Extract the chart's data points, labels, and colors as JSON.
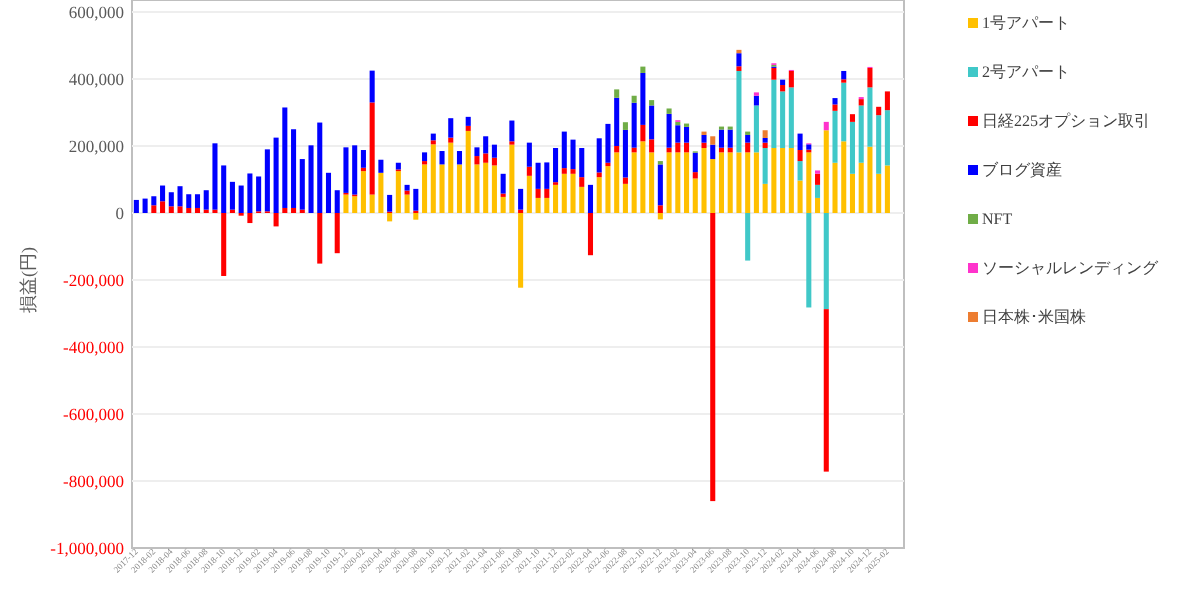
{
  "chart_data": {
    "type": "bar",
    "stacked": true,
    "ylabel": "損益(円)",
    "categories": [
      "2017-12",
      null,
      "2018-02",
      null,
      "2018-04",
      null,
      "2018-06",
      null,
      "2018-08",
      null,
      "2018-10",
      null,
      "2018-12",
      null,
      "2019-02",
      null,
      "2019-04",
      null,
      "2019-06",
      null,
      "2019-08",
      null,
      "2019-10",
      null,
      "2019-12",
      null,
      "2020-02",
      null,
      "2020-04",
      null,
      "2020-06",
      null,
      "2020-08",
      null,
      "2020-10",
      null,
      "2020-12",
      null,
      "2021-02",
      null,
      "2021-04",
      null,
      "2021-06",
      null,
      "2021-08",
      null,
      "2021-10",
      null,
      "2021-12",
      null,
      "2022-02",
      null,
      "2022-04",
      null,
      "2022-06",
      null,
      "2022-08",
      null,
      "2022-10",
      null,
      "2022-12",
      null,
      "2023-02",
      null,
      "2023-04",
      null,
      "2023-06",
      null,
      "2023-08",
      null,
      "2023-10",
      null,
      "2023-12",
      null,
      "2024-02",
      null,
      "2024-04",
      null,
      "2024-06",
      null,
      "2024-08",
      null,
      "2024-10",
      null,
      "2024-12",
      null,
      "2025-02"
    ],
    "ylim": [
      -1000000,
      600000
    ],
    "yticks": [
      {
        "value": -1000000,
        "label": "-1,000,000"
      },
      {
        "value": -800000,
        "label": "-800,000"
      },
      {
        "value": -600000,
        "label": "-600,000"
      },
      {
        "value": -400000,
        "label": "-400,000"
      },
      {
        "value": -200000,
        "label": "-200,000"
      },
      0,
      {
        "value": 200000,
        "label": "200,000"
      },
      {
        "value": 400000,
        "label": "400,000"
      },
      {
        "value": 600000,
        "label": "600,000"
      }
    ],
    "grid": "y",
    "legend": "right",
    "series": [
      {
        "name": "1号アパート",
        "color": "#ffc000",
        "values": [
          0,
          0,
          0,
          0,
          0,
          0,
          0,
          0,
          0,
          0,
          0,
          0,
          0,
          0,
          0,
          0,
          0,
          0,
          0,
          0,
          0,
          0,
          0,
          0,
          55000,
          50000,
          125000,
          55000,
          120000,
          -25000,
          125000,
          55000,
          -20000,
          145000,
          205000,
          145000,
          210000,
          145000,
          245000,
          145000,
          150000,
          142000,
          48000,
          204000,
          -223000,
          111000,
          45000,
          45000,
          84000,
          117000,
          117000,
          78000,
          0,
          107000,
          140000,
          181000,
          87000,
          181000,
          214000,
          181000,
          -19000,
          181000,
          181000,
          181000,
          103000,
          194000,
          161000,
          181000,
          181000,
          181000,
          181000,
          181000,
          87000,
          194000,
          194000,
          194000,
          97000,
          181000,
          45000,
          247000,
          150000,
          214000,
          117000,
          150000,
          198000,
          117000,
          142000
        ]
      },
      {
        "name": "2号アパート",
        "color": "#40c8c8",
        "values": [
          0,
          0,
          0,
          0,
          0,
          0,
          0,
          0,
          0,
          0,
          0,
          0,
          0,
          0,
          0,
          0,
          0,
          0,
          0,
          0,
          0,
          0,
          0,
          0,
          0,
          0,
          0,
          0,
          0,
          0,
          0,
          0,
          0,
          0,
          0,
          0,
          0,
          0,
          0,
          0,
          0,
          0,
          0,
          0,
          0,
          0,
          0,
          0,
          0,
          0,
          0,
          0,
          0,
          0,
          0,
          0,
          0,
          0,
          0,
          0,
          0,
          0,
          0,
          0,
          0,
          0,
          0,
          0,
          0,
          243000,
          -142000,
          140000,
          107000,
          204000,
          169000,
          181000,
          58000,
          -282000,
          39000,
          -287000,
          155000,
          175000,
          155000,
          171000,
          177000,
          175000,
          165000
        ]
      },
      {
        "name": "日経225オプション取引",
        "color": "#ff0000",
        "values": [
          0,
          0,
          23000,
          35000,
          20000,
          20000,
          15000,
          15000,
          10000,
          10000,
          -188000,
          10000,
          -8000,
          -30000,
          5000,
          5000,
          -40000,
          15000,
          15000,
          10000,
          0,
          -151000,
          0,
          -120000,
          5000,
          5000,
          10000,
          275000,
          0,
          4000,
          5000,
          12000,
          7000,
          10000,
          12000,
          0,
          15000,
          0,
          15000,
          25000,
          28000,
          23000,
          10000,
          10000,
          10000,
          27000,
          27000,
          27000,
          8000,
          17000,
          14000,
          29000,
          -126000,
          14000,
          10000,
          19000,
          19000,
          14000,
          49000,
          39000,
          23000,
          14000,
          29000,
          29000,
          19000,
          16000,
          -860000,
          14000,
          14000,
          14000,
          29000,
          0,
          16000,
          35000,
          19000,
          49000,
          33000,
          8000,
          33000,
          -485000,
          19000,
          10000,
          23000,
          19000,
          58000,
          25000,
          56000
        ]
      },
      {
        "name": "ブログ資産",
        "color": "#0000ff",
        "values": [
          39000,
          43000,
          27000,
          47000,
          42000,
          60000,
          41000,
          41000,
          58000,
          198000,
          142000,
          83000,
          82000,
          118000,
          104000,
          185000,
          225000,
          300000,
          235000,
          151000,
          202000,
          270000,
          120000,
          68000,
          136000,
          147000,
          53000,
          95000,
          39000,
          50000,
          20000,
          17000,
          65000,
          26000,
          20000,
          40000,
          58000,
          40000,
          27000,
          26000,
          51000,
          39000,
          59000,
          62000,
          62000,
          72000,
          78000,
          79000,
          102000,
          109000,
          88000,
          87000,
          84000,
          102000,
          116000,
          144000,
          142000,
          134000,
          155000,
          101000,
          122000,
          101000,
          52000,
          47000,
          58000,
          23000,
          43000,
          54000,
          54000,
          39000,
          23000,
          29000,
          14000,
          4000,
          16000,
          0,
          49000,
          16000,
          0,
          0,
          19000,
          25000,
          0,
          0,
          0,
          0,
          0
        ]
      },
      {
        "name": "NFT",
        "color": "#70ad47",
        "values": [
          0,
          0,
          0,
          0,
          0,
          0,
          0,
          0,
          0,
          0,
          0,
          0,
          0,
          0,
          0,
          0,
          0,
          0,
          0,
          0,
          0,
          0,
          0,
          0,
          0,
          0,
          0,
          0,
          0,
          0,
          0,
          0,
          0,
          0,
          0,
          0,
          0,
          0,
          0,
          0,
          0,
          0,
          0,
          0,
          0,
          0,
          0,
          0,
          0,
          0,
          0,
          0,
          0,
          0,
          0,
          25000,
          23000,
          21000,
          19000,
          16000,
          10000,
          16000,
          10000,
          10000,
          4000,
          0,
          0,
          9000,
          9000,
          0,
          10000,
          0,
          0,
          5000,
          0,
          0,
          0,
          0,
          0,
          0,
          0,
          0,
          0,
          0,
          0,
          0,
          0
        ]
      },
      {
        "name": "ソーシャルレンディング",
        "color": "#ff33cc",
        "values": [
          0,
          0,
          0,
          0,
          0,
          0,
          0,
          0,
          0,
          0,
          0,
          0,
          0,
          0,
          0,
          0,
          0,
          0,
          0,
          0,
          0,
          0,
          0,
          0,
          0,
          0,
          0,
          0,
          0,
          0,
          0,
          0,
          0,
          0,
          0,
          0,
          0,
          0,
          0,
          0,
          0,
          0,
          0,
          0,
          0,
          0,
          0,
          0,
          0,
          0,
          0,
          0,
          0,
          0,
          0,
          0,
          0,
          0,
          0,
          0,
          0,
          0,
          5000,
          0,
          0,
          0,
          0,
          0,
          0,
          0,
          0,
          10000,
          0,
          5000,
          0,
          3000,
          0,
          3000,
          10000,
          25000,
          0,
          0,
          0,
          6000,
          3000,
          0,
          0
        ]
      },
      {
        "name": "日本株･米国株",
        "color": "#ed7d31",
        "values": [
          0,
          0,
          0,
          0,
          0,
          0,
          0,
          0,
          0,
          0,
          0,
          0,
          0,
          0,
          0,
          0,
          0,
          0,
          0,
          0,
          0,
          0,
          0,
          0,
          0,
          0,
          0,
          0,
          0,
          0,
          0,
          0,
          0,
          0,
          0,
          0,
          0,
          0,
          0,
          0,
          0,
          0,
          0,
          0,
          0,
          0,
          0,
          0,
          0,
          0,
          0,
          0,
          0,
          0,
          0,
          0,
          0,
          0,
          0,
          0,
          0,
          0,
          0,
          0,
          0,
          10000,
          25000,
          0,
          0,
          10000,
          0,
          0,
          23000,
          0,
          0,
          0,
          0,
          0,
          0,
          0,
          0,
          0,
          0,
          0,
          0,
          0,
          0
        ]
      }
    ]
  }
}
